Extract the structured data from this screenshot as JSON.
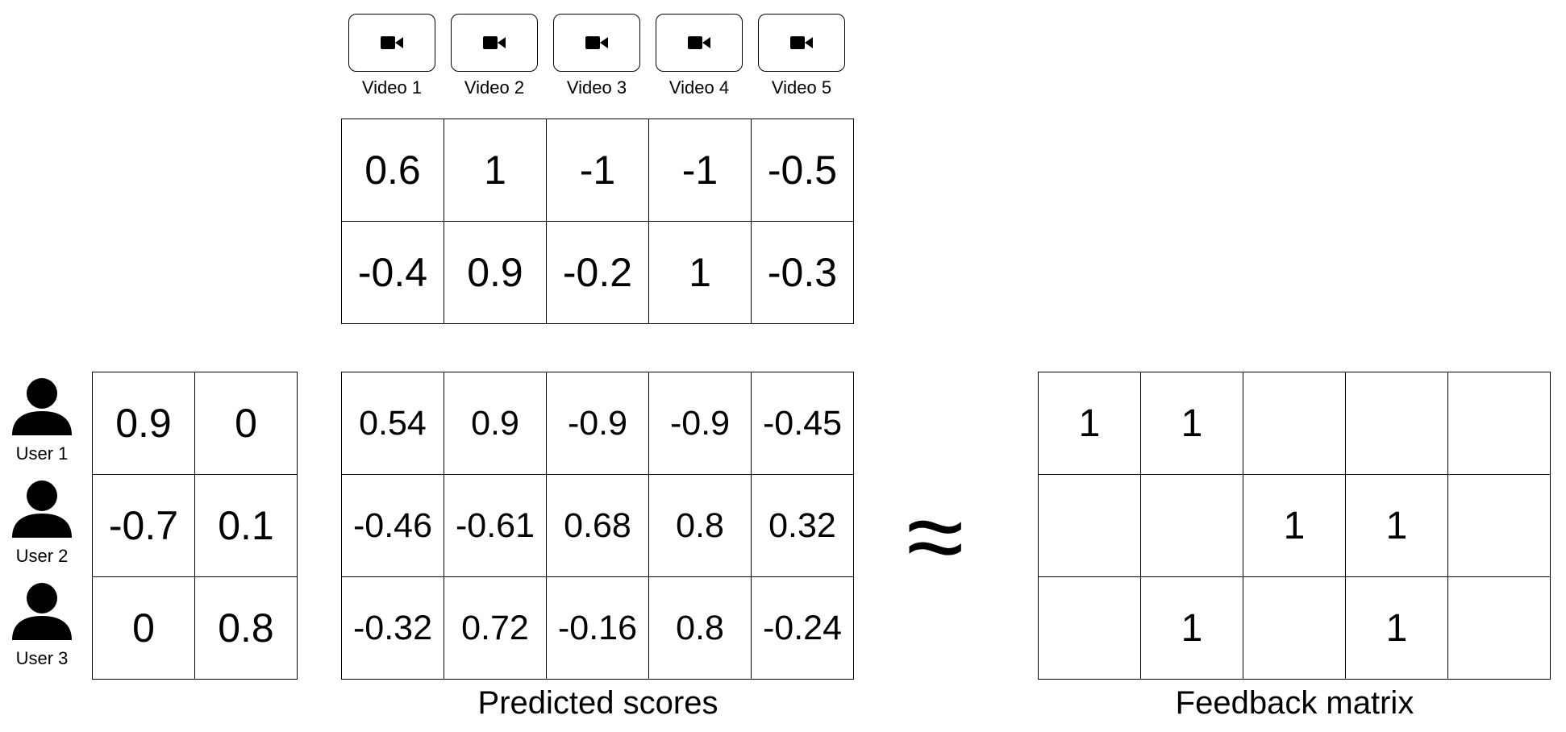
{
  "videos": [
    {
      "label": "Video 1",
      "icon": "video-camera-icon"
    },
    {
      "label": "Video 2",
      "icon": "video-camera-icon"
    },
    {
      "label": "Video 3",
      "icon": "video-camera-icon"
    },
    {
      "label": "Video 4",
      "icon": "video-camera-icon"
    },
    {
      "label": "Video 5",
      "icon": "video-camera-icon"
    }
  ],
  "item_embeddings": [
    [
      "0.6",
      "1",
      "-1",
      "-1",
      "-0.5"
    ],
    [
      "-0.4",
      "0.9",
      "-0.2",
      "1",
      "-0.3"
    ]
  ],
  "users": [
    {
      "label": "User 1",
      "icon": "user-icon"
    },
    {
      "label": "User 2",
      "icon": "user-icon"
    },
    {
      "label": "User 3",
      "icon": "user-icon"
    }
  ],
  "user_embeddings": [
    [
      "0.9",
      "0"
    ],
    [
      "-0.7",
      "0.1"
    ],
    [
      "0",
      "0.8"
    ]
  ],
  "predicted_scores": [
    [
      "0.54",
      "0.9",
      "-0.9",
      "-0.9",
      "-0.45"
    ],
    [
      "-0.46",
      "-0.61",
      "0.68",
      "0.8",
      "0.32"
    ],
    [
      "-0.32",
      "0.72",
      "-0.16",
      "0.8",
      "-0.24"
    ]
  ],
  "approx_symbol": "≈",
  "feedback_matrix": [
    [
      "1",
      "1",
      "",
      "",
      ""
    ],
    [
      "",
      "",
      "1",
      "1",
      ""
    ],
    [
      "",
      "1",
      "",
      "1",
      ""
    ]
  ],
  "captions": {
    "predicted": "Predicted scores",
    "feedback": "Feedback matrix"
  }
}
